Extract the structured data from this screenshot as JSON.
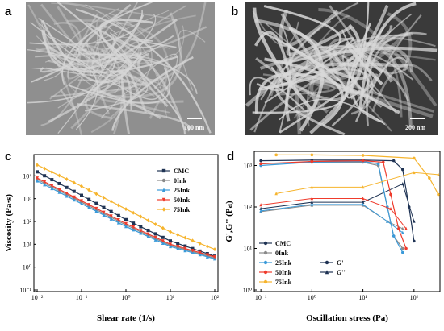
{
  "panels": {
    "a": {
      "letter": "a",
      "scale_label": "100 nm"
    },
    "b": {
      "letter": "b",
      "scale_label": "200 nm"
    },
    "c": {
      "letter": "c"
    },
    "d": {
      "letter": "d"
    }
  },
  "colors": {
    "CMC": "#1f3354",
    "0Ink": "#8a8a8a",
    "25Ink": "#3a9ad9",
    "50Ink": "#ef3b2c",
    "75Ink": "#f6b42d"
  },
  "chart_data": [
    {
      "type": "line",
      "xlabel": "Shear rate (1/s)",
      "ylabel": "Viscosity (Pa·s)",
      "xscale": "log",
      "yscale": "log",
      "xlim": [
        0.01,
        100
      ],
      "ylim": [
        0.1,
        100000
      ],
      "xticks": [
        "10⁻²",
        "10⁻¹",
        "10⁰",
        "10¹",
        "10²"
      ],
      "yticks": [
        "10⁻¹",
        "10⁰",
        "10¹",
        "10²",
        "10³",
        "10⁴"
      ],
      "legend_position": "top-right",
      "series": [
        {
          "name": "CMC",
          "marker": "square",
          "x": [
            0.01,
            0.1,
            1,
            10,
            100
          ],
          "y": [
            15000,
            1400,
            120,
            14,
            3
          ]
        },
        {
          "name": "0Ink",
          "marker": "circle",
          "x": [
            0.01,
            0.1,
            1,
            10,
            100
          ],
          "y": [
            7000,
            700,
            70,
            9,
            2.5
          ]
        },
        {
          "name": "25Ink",
          "marker": "triangle",
          "x": [
            0.01,
            0.1,
            1,
            10,
            100
          ],
          "y": [
            6000,
            600,
            60,
            8,
            2.3
          ]
        },
        {
          "name": "50Ink",
          "marker": "triangle-down",
          "x": [
            0.01,
            0.1,
            1,
            10,
            100
          ],
          "y": [
            8000,
            800,
            80,
            10,
            2.8
          ]
        },
        {
          "name": "75Ink",
          "marker": "diamond",
          "x": [
            0.01,
            0.1,
            1,
            10,
            100
          ],
          "y": [
            30000,
            3500,
            350,
            35,
            6
          ]
        }
      ]
    },
    {
      "type": "line",
      "xlabel": "Oscillation stress (Pa)",
      "ylabel": "G',G'' (Pa)",
      "xscale": "log",
      "yscale": "log",
      "xlim": [
        0.08,
        300
      ],
      "ylim": [
        1,
        2000
      ],
      "xticks": [
        "10⁻¹",
        "10⁰",
        "10¹",
        "10²"
      ],
      "yticks": [
        "10⁰",
        "10¹",
        "10²",
        "10³"
      ],
      "legend_position": "bottom-left",
      "legend_markers": [
        {
          "label": "G'",
          "marker": "circle"
        },
        {
          "label": "G''",
          "marker": "star"
        }
      ],
      "series": [
        {
          "name": "CMC",
          "x": [
            0.1,
            1,
            10,
            40,
            60,
            80,
            100
          ],
          "y": [
            1300,
            1350,
            1350,
            1300,
            800,
            100,
            15
          ]
        },
        {
          "name": "0Ink",
          "x": [
            0.1,
            1,
            10,
            20,
            30,
            40,
            60
          ],
          "y": [
            1100,
            1200,
            1200,
            1000,
            100,
            20,
            10
          ]
        },
        {
          "name": "25Ink",
          "x": [
            0.1,
            1,
            10,
            20,
            30,
            40,
            60
          ],
          "y": [
            1000,
            1200,
            1250,
            1100,
            100,
            20,
            8
          ]
        },
        {
          "name": "50Ink",
          "x": [
            0.1,
            1,
            10,
            25,
            35,
            50,
            70
          ],
          "y": [
            1100,
            1250,
            1300,
            1200,
            200,
            30,
            10
          ]
        },
        {
          "name": "75Ink",
          "x": [
            0.2,
            1,
            10,
            100,
            200,
            300
          ],
          "y": [
            1800,
            1800,
            1750,
            1500,
            500,
            200
          ]
        }
      ]
    }
  ]
}
